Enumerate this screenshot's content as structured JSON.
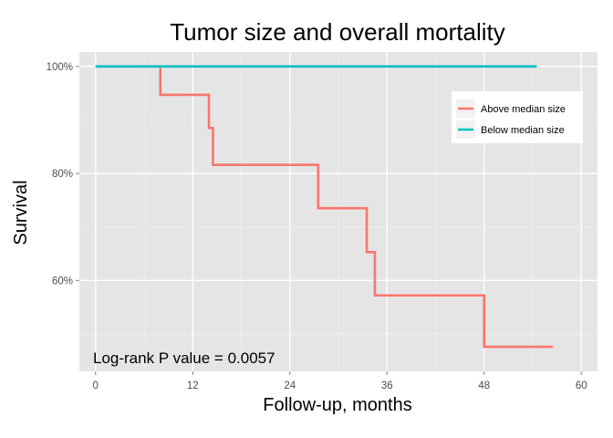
{
  "chart_data": {
    "type": "line",
    "title": "Tumor size and overall mortality",
    "xlabel": "Follow-up, months",
    "ylabel": "Survival",
    "xlim": [
      -2,
      62
    ],
    "ylim": [
      0.43,
      1.027
    ],
    "x_ticks": [
      0,
      12,
      24,
      36,
      48,
      60
    ],
    "x_tick_labels": [
      "0",
      "12",
      "24",
      "36",
      "48",
      "60"
    ],
    "y_ticks": [
      0.6,
      0.8,
      1.0
    ],
    "y_tick_labels": [
      "60%",
      "80%",
      "100%"
    ],
    "grid": true,
    "legend_position": "top-right",
    "annotation": "Log-rank P value = 0.0057",
    "series": [
      {
        "name": "Above median size",
        "color": "#F8766D",
        "step": true,
        "x": [
          0,
          8,
          14,
          14.5,
          27.5,
          33.5,
          34.5,
          48,
          56.5
        ],
        "y": [
          1.0,
          0.947,
          0.885,
          0.816,
          0.735,
          0.653,
          0.572,
          0.476,
          0.476
        ]
      },
      {
        "name": "Below median size",
        "color": "#00BFC4",
        "step": true,
        "x": [
          0,
          54.5
        ],
        "y": [
          1.0,
          1.0
        ]
      }
    ]
  }
}
